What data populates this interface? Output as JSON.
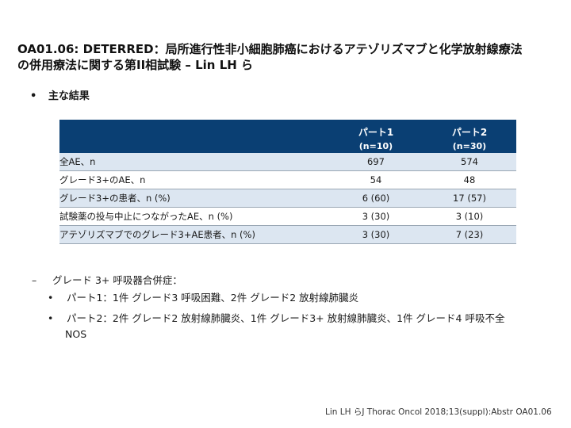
{
  "title": {
    "line1": "OA01.06: DETERRED：局所進行性非小細胞肺癌におけるアテゾリズマブと化学放射線療法",
    "line2": "の併用療法に関する第II相試験 – Lin LH ら"
  },
  "main_bullet": {
    "marker": "•",
    "text": "主な結果"
  },
  "table": {
    "columns": [
      {
        "group": "パート1",
        "n": "(n=10)"
      },
      {
        "group": "パート2",
        "n": "(n=30)"
      }
    ],
    "rows": [
      {
        "label": "全AE、n",
        "values": [
          "697",
          "574"
        ]
      },
      {
        "label": "グレード3+のAE、n",
        "values": [
          "54",
          "48"
        ]
      },
      {
        "label": "グレード3+の患者、n (%)",
        "values": [
          "6 (60)",
          "17 (57)"
        ]
      },
      {
        "label": "試験薬の投与中止につながったAE、n (%)",
        "values": [
          "3 (30)",
          "3 (10)"
        ]
      },
      {
        "label": "アテゾリズマブでのグレード3+AE患者、n (%)",
        "values": [
          "3 (30)",
          "7 (23)"
        ]
      }
    ]
  },
  "sub_heading": {
    "marker": "–",
    "text": "グレード 3+ 呼吸器合併症："
  },
  "sub_bullets": [
    {
      "marker": "•",
      "text": "パート1：1件 グレード3 呼吸困難、2件 グレード2 放射線肺臓炎",
      "cont": ""
    },
    {
      "marker": "•",
      "text": "パート2：2件 グレード2 放射線肺臓炎、1件 グレード3+ 放射線肺臓炎、1件 グレード4 呼吸不全",
      "cont": "NOS"
    }
  ],
  "citation": "Lin LH らJ Thorac Oncol 2018;13(suppl):Abstr OA01.06",
  "colors": {
    "header_bg": "#0a3f73",
    "row_shade": "#dce6f1"
  }
}
